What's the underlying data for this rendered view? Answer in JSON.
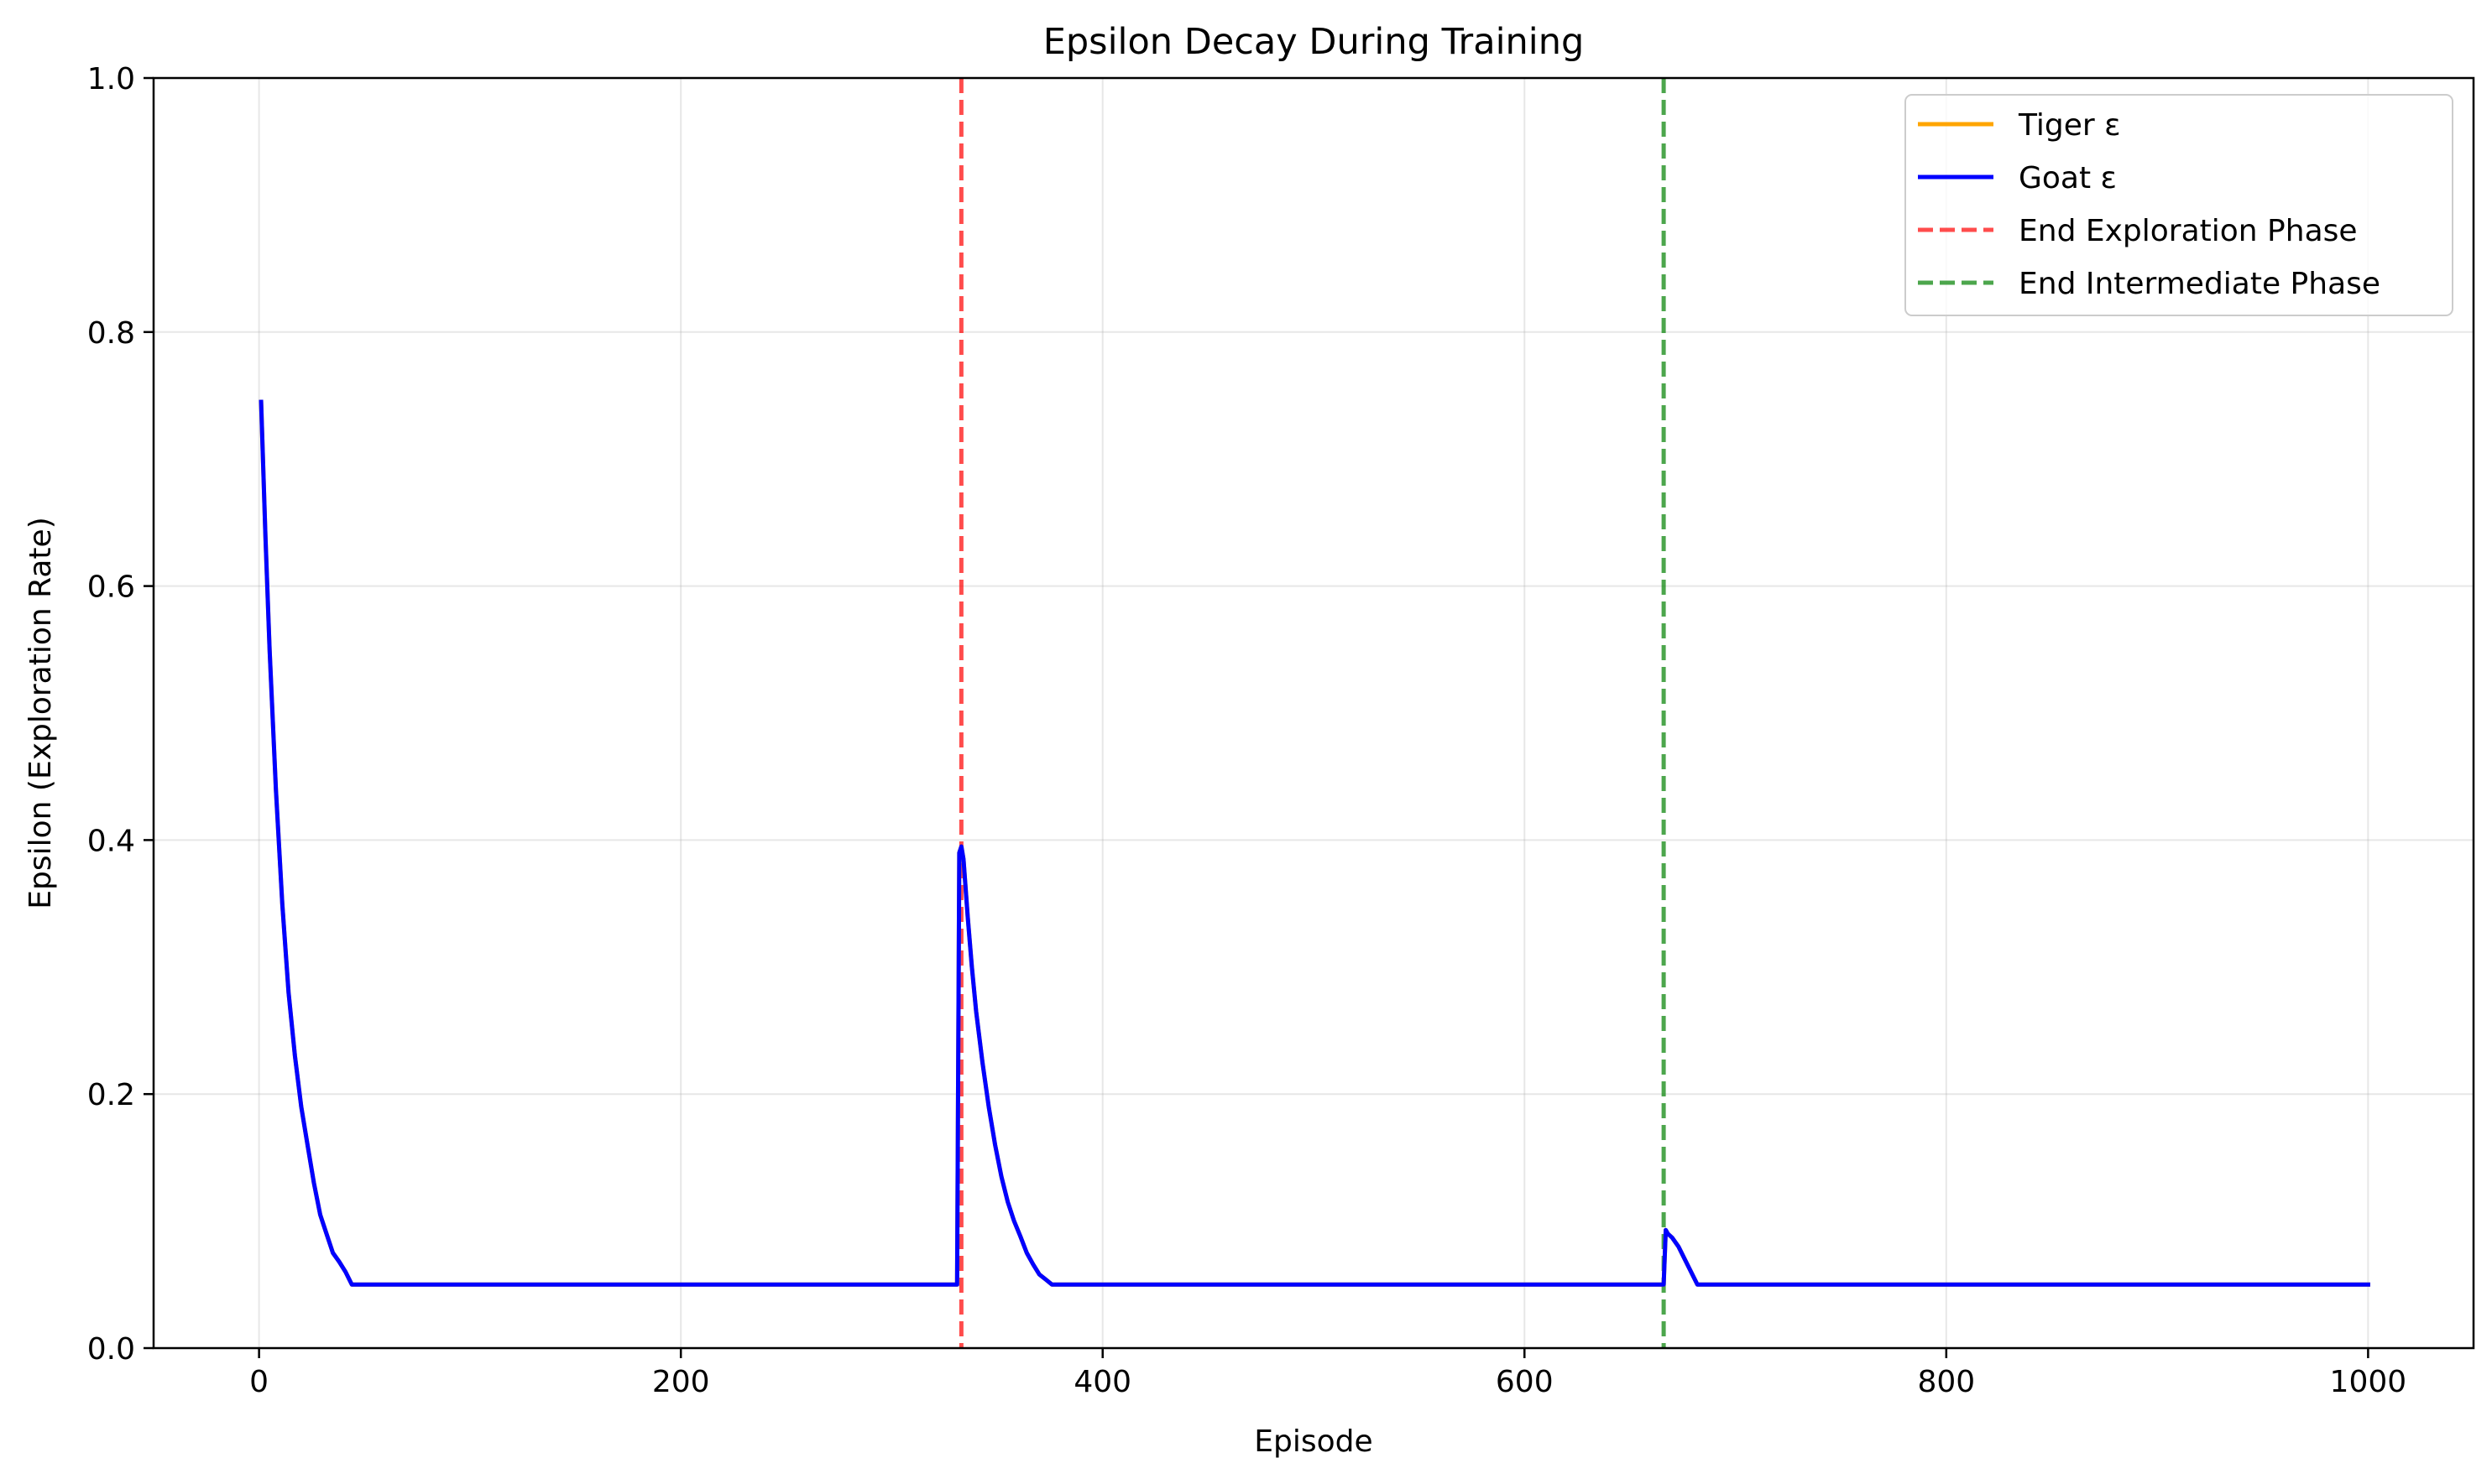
{
  "chart_data": {
    "type": "line",
    "title": "Epsilon Decay During Training",
    "xlabel": "Episode",
    "ylabel": "Epsilon (Exploration Rate)",
    "xlim": [
      -50,
      1050
    ],
    "ylim": [
      0.0,
      1.0
    ],
    "xticks": [
      0,
      200,
      400,
      600,
      800,
      1000
    ],
    "xtick_labels": [
      "0",
      "200",
      "400",
      "600",
      "800",
      "1000"
    ],
    "yticks": [
      0.0,
      0.2,
      0.4,
      0.6,
      0.8,
      1.0
    ],
    "ytick_labels": [
      "0.0",
      "0.2",
      "0.4",
      "0.6",
      "0.8",
      "1.0"
    ],
    "grid": true,
    "legend_position": "top-right",
    "series": [
      {
        "name": "Tiger ε",
        "color": "#ffa500",
        "style": "solid",
        "x": [
          1,
          3,
          5,
          8,
          11,
          14,
          17,
          20,
          23,
          26,
          29,
          32,
          35,
          38,
          41,
          44,
          47,
          60,
          150,
          250,
          330,
          331,
          332,
          333,
          334,
          336,
          338,
          340,
          343,
          346,
          349,
          352,
          355,
          358,
          361,
          364,
          367,
          370,
          373,
          376,
          400,
          500,
          600,
          665,
          666,
          667,
          668,
          670,
          673,
          676,
          679,
          682,
          700,
          800,
          900,
          1000
        ],
        "y": [
          0.745,
          0.64,
          0.55,
          0.44,
          0.35,
          0.28,
          0.23,
          0.19,
          0.16,
          0.13,
          0.105,
          0.09,
          0.075,
          0.068,
          0.06,
          0.05,
          0.05,
          0.05,
          0.05,
          0.05,
          0.05,
          0.05,
          0.39,
          0.395,
          0.385,
          0.34,
          0.3,
          0.265,
          0.225,
          0.19,
          0.16,
          0.135,
          0.115,
          0.1,
          0.088,
          0.075,
          0.066,
          0.058,
          0.054,
          0.05,
          0.05,
          0.05,
          0.05,
          0.05,
          0.05,
          0.093,
          0.09,
          0.087,
          0.08,
          0.07,
          0.06,
          0.05,
          0.05,
          0.05,
          0.05,
          0.05
        ]
      },
      {
        "name": "Goat ε",
        "color": "#0000ff",
        "style": "solid",
        "x": [
          1,
          3,
          5,
          8,
          11,
          14,
          17,
          20,
          23,
          26,
          29,
          32,
          35,
          38,
          41,
          44,
          47,
          60,
          150,
          250,
          330,
          331,
          332,
          333,
          334,
          336,
          338,
          340,
          343,
          346,
          349,
          352,
          355,
          358,
          361,
          364,
          367,
          370,
          373,
          376,
          400,
          500,
          600,
          665,
          666,
          667,
          668,
          670,
          673,
          676,
          679,
          682,
          700,
          800,
          900,
          1000
        ],
        "y": [
          0.745,
          0.64,
          0.55,
          0.44,
          0.35,
          0.28,
          0.23,
          0.19,
          0.16,
          0.13,
          0.105,
          0.09,
          0.075,
          0.068,
          0.06,
          0.05,
          0.05,
          0.05,
          0.05,
          0.05,
          0.05,
          0.05,
          0.39,
          0.395,
          0.385,
          0.34,
          0.3,
          0.265,
          0.225,
          0.19,
          0.16,
          0.135,
          0.115,
          0.1,
          0.088,
          0.075,
          0.066,
          0.058,
          0.054,
          0.05,
          0.05,
          0.05,
          0.05,
          0.05,
          0.05,
          0.093,
          0.09,
          0.087,
          0.08,
          0.07,
          0.06,
          0.05,
          0.05,
          0.05,
          0.05,
          0.05
        ]
      }
    ],
    "vlines": [
      {
        "name": "End Exploration Phase",
        "x": 333,
        "color": "#ff0000",
        "style": "dashed"
      },
      {
        "name": "End Intermediate Phase",
        "x": 666,
        "color": "#008000",
        "style": "dashed"
      }
    ]
  }
}
